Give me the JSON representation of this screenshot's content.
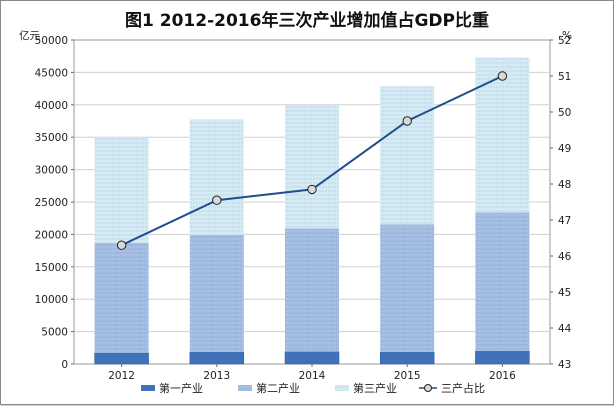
{
  "chart_data": {
    "type": "bar",
    "title": "图1   2012-2016年三次产业增加值占GDP比重",
    "categories": [
      "2012",
      "2013",
      "2014",
      "2015",
      "2016"
    ],
    "left_unit": "亿元",
    "right_unit": "%",
    "ylim_left": [
      0,
      50000
    ],
    "ylim_right": [
      43,
      52
    ],
    "left_ticks": [
      0,
      5000,
      10000,
      15000,
      20000,
      25000,
      30000,
      35000,
      40000,
      45000,
      50000
    ],
    "right_ticks": [
      43,
      44,
      45,
      46,
      47,
      48,
      49,
      50,
      51,
      52
    ],
    "stacked": true,
    "grid": true,
    "legend_position": "bottom",
    "series": [
      {
        "name": "第一产业",
        "type": "bar",
        "axis": "left",
        "color": "#3f72b8",
        "values": [
          1700,
          1850,
          1900,
          1850,
          2000
        ]
      },
      {
        "name": "第二产业",
        "type": "bar",
        "axis": "left",
        "color": "#9db9e0",
        "values": [
          17000,
          18100,
          19000,
          19700,
          21400
        ]
      },
      {
        "name": "第三产业",
        "type": "bar",
        "axis": "left",
        "color": "#c6e0ef",
        "values": [
          16200,
          17800,
          19100,
          21300,
          23900
        ]
      },
      {
        "name": "三产占比",
        "type": "line",
        "axis": "right",
        "color": "#1f4e8c",
        "values": [
          46.3,
          47.55,
          47.85,
          49.75,
          51.0
        ]
      }
    ]
  }
}
